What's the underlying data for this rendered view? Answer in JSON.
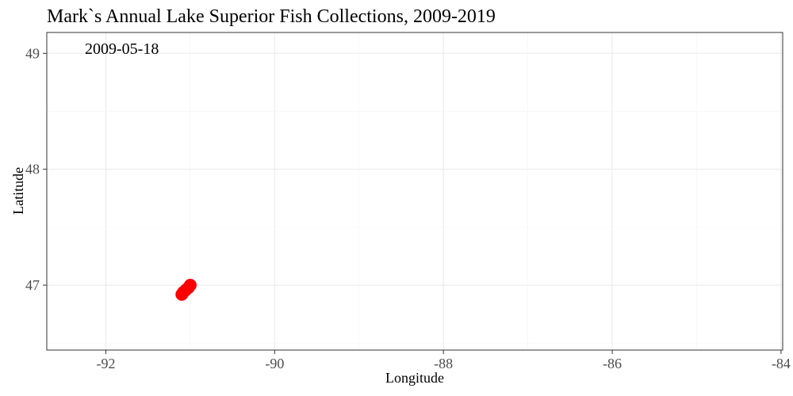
{
  "chart_data": {
    "type": "scatter",
    "title": "Mark`s Annual Lake Superior Fish Collections, 2009-2019",
    "annotation": "2009-05-18",
    "xlabel": "Longitude",
    "ylabel": "Latitude",
    "xlim": [
      -92.7,
      -83.98
    ],
    "ylim": [
      46.44,
      49.18
    ],
    "xticks": [
      -92,
      -90,
      -88,
      -86,
      -84
    ],
    "yticks": [
      47,
      48,
      49
    ],
    "xtick_labels": [
      "-92",
      "-90",
      "-88",
      "-86",
      "-84"
    ],
    "ytick_labels": [
      "47",
      "48",
      "49"
    ],
    "grid": true,
    "point_color": "#ff0000",
    "series": [
      {
        "points": [
          {
            "x": -91.1,
            "y": 46.92
          },
          {
            "x": -91.08,
            "y": 46.94
          },
          {
            "x": -91.05,
            "y": 46.96
          },
          {
            "x": -91.02,
            "y": 46.98
          },
          {
            "x": -91.0,
            "y": 47.0
          }
        ]
      }
    ]
  }
}
